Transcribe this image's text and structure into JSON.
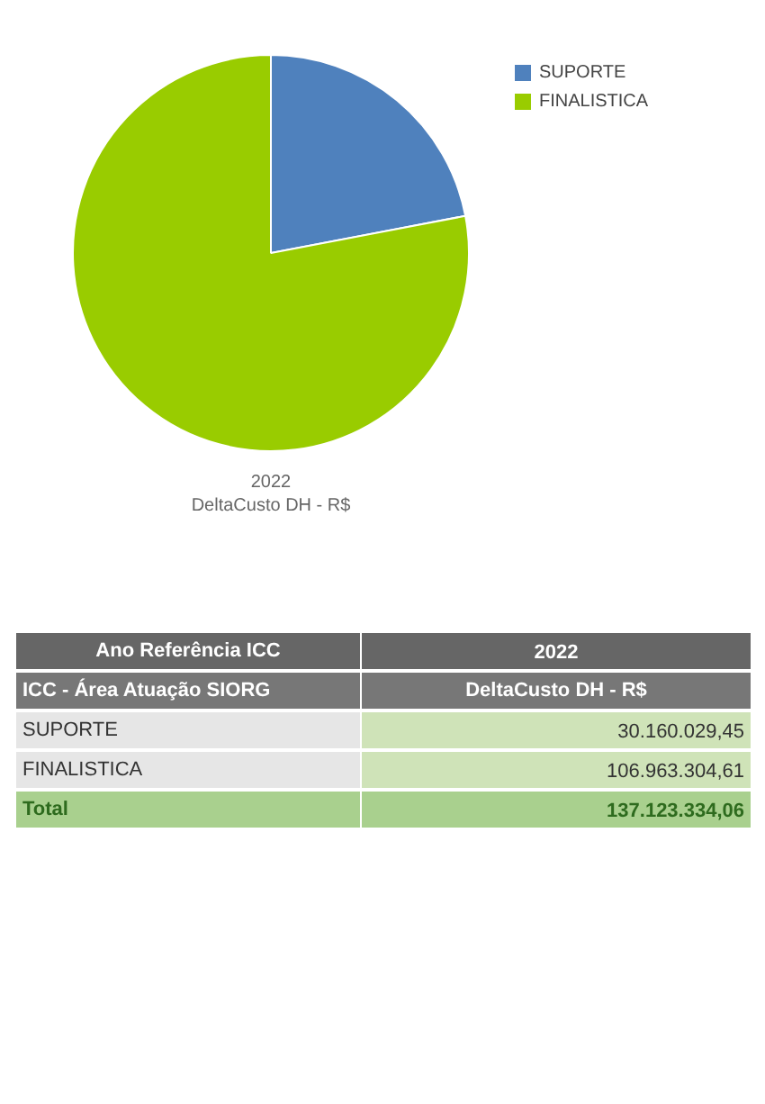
{
  "chart_data": [
    {
      "type": "pie",
      "subtitle": "2022\nDeltaCusto DH - R$",
      "categories": [
        "SUPORTE",
        "FINALISTICA"
      ],
      "values": [
        22,
        78
      ],
      "colors": [
        "#4f81bd",
        "#99cc00"
      ],
      "legend": "top right"
    },
    {
      "type": "other",
      "annotations": [
        "Ano Referência ICC",
        "2022",
        "ICC - Área Atuação SIORG",
        "DeltaCusto DH - R$",
        "SUPORTE",
        "30.160.029,45",
        "FINALISTICA",
        "106.963.304,61",
        "Total",
        "137.123.334,06"
      ]
    }
  ]
}
